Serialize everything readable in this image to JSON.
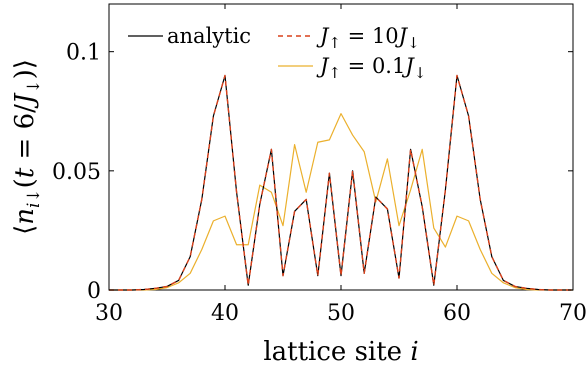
{
  "chart_data": {
    "type": "line",
    "xlabel": "lattice site i",
    "ylabel": "⟨n_{i↓}(t = 6/J↓)⟩",
    "xlim": [
      30,
      70
    ],
    "ylim": [
      0,
      0.12
    ],
    "xticks": [
      30,
      40,
      50,
      60,
      70
    ],
    "xtick_labels": [
      "30",
      "40",
      "50",
      "60",
      "70"
    ],
    "yticks": [
      0,
      0.05,
      0.1
    ],
    "ytick_labels": [
      "0",
      "0.05",
      "0.1"
    ],
    "grid": false,
    "legend_placement": "top",
    "x": [
      30,
      31,
      32,
      33,
      34,
      35,
      36,
      37,
      38,
      39,
      40,
      41,
      42,
      43,
      44,
      45,
      46,
      47,
      48,
      49,
      50,
      51,
      52,
      53,
      54,
      55,
      56,
      57,
      58,
      59,
      60,
      61,
      62,
      63,
      64,
      65,
      66,
      67,
      68,
      69,
      70
    ],
    "series": [
      {
        "name": "analytic",
        "color": "#000000",
        "dash": "solid",
        "values": [
          0,
          0,
          0,
          0.0002,
          0.0007,
          0.0015,
          0.004,
          0.014,
          0.038,
          0.073,
          0.09,
          0.041,
          0.002,
          0.036,
          0.059,
          0.006,
          0.033,
          0.038,
          0.006,
          0.049,
          0.006,
          0.05,
          0.007,
          0.039,
          0.034,
          0.005,
          0.059,
          0.035,
          0.002,
          0.042,
          0.09,
          0.073,
          0.038,
          0.014,
          0.004,
          0.0015,
          0.0007,
          0.0002,
          0,
          0,
          0
        ]
      },
      {
        "name": "J↑ = 10J↓",
        "color": "#d9401a",
        "dash": "dashed",
        "values": [
          0,
          0,
          0,
          0.0002,
          0.0007,
          0.0015,
          0.004,
          0.014,
          0.038,
          0.073,
          0.09,
          0.041,
          0.002,
          0.036,
          0.059,
          0.006,
          0.033,
          0.038,
          0.006,
          0.049,
          0.006,
          0.05,
          0.007,
          0.039,
          0.034,
          0.005,
          0.059,
          0.035,
          0.002,
          0.042,
          0.09,
          0.073,
          0.038,
          0.014,
          0.004,
          0.0015,
          0.0007,
          0.0002,
          0,
          0,
          0
        ]
      },
      {
        "name": "J↑ = 0.1J↓",
        "color": "#ebb02d",
        "dash": "solid",
        "values": [
          0,
          0,
          0,
          0,
          0.0002,
          0.001,
          0.003,
          0.007,
          0.017,
          0.029,
          0.031,
          0.019,
          0.019,
          0.044,
          0.041,
          0.027,
          0.061,
          0.041,
          0.062,
          0.063,
          0.074,
          0.065,
          0.058,
          0.037,
          0.055,
          0.027,
          0.042,
          0.059,
          0.026,
          0.018,
          0.031,
          0.029,
          0.017,
          0.007,
          0.003,
          0.001,
          0.0002,
          0,
          0,
          0,
          0
        ]
      }
    ]
  }
}
